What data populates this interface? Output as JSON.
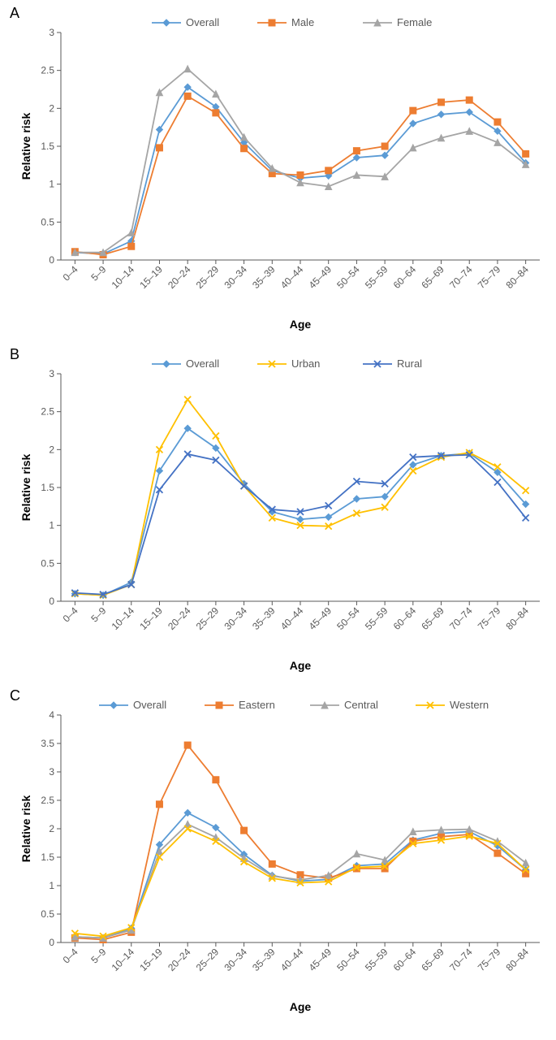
{
  "categories": [
    "0–4",
    "5–9",
    "10–14",
    "15–19",
    "20–24",
    "25–29",
    "30–34",
    "35–39",
    "40–44",
    "45–49",
    "50–54",
    "55–59",
    "60–64",
    "65–69",
    "70–74",
    "75–79",
    "80–84"
  ],
  "xlabel": "Age",
  "ylabel": "Relative risk",
  "xlabel_fontsize": 14,
  "ylabel_fontsize": 14,
  "tick_fontsize": 12,
  "legend_fontsize": 13,
  "background_color": "#ffffff",
  "axis_color": "#595959",
  "tick_color": "#595959",
  "panels": [
    {
      "label": "A",
      "ylim": [
        0,
        3
      ],
      "ytick_step": 0.5,
      "series": [
        {
          "name": "Overall",
          "color": "#5b9bd5",
          "marker": "diamond",
          "values": [
            0.1,
            0.08,
            0.25,
            1.72,
            2.28,
            2.02,
            1.55,
            1.18,
            1.08,
            1.11,
            1.35,
            1.38,
            1.8,
            1.92,
            1.95,
            1.7,
            1.28
          ]
        },
        {
          "name": "Male",
          "color": "#ed7d31",
          "marker": "square",
          "values": [
            0.11,
            0.07,
            0.18,
            1.48,
            2.16,
            1.94,
            1.47,
            1.14,
            1.12,
            1.18,
            1.44,
            1.5,
            1.97,
            2.08,
            2.11,
            1.82,
            1.4
          ]
        },
        {
          "name": "Female",
          "color": "#a5a5a5",
          "marker": "triangle",
          "values": [
            0.1,
            0.1,
            0.36,
            2.21,
            2.52,
            2.19,
            1.62,
            1.21,
            1.02,
            0.97,
            1.12,
            1.1,
            1.48,
            1.61,
            1.7,
            1.55,
            1.26
          ]
        }
      ]
    },
    {
      "label": "B",
      "ylim": [
        0,
        3
      ],
      "ytick_step": 0.5,
      "series": [
        {
          "name": "Overall",
          "color": "#5b9bd5",
          "marker": "diamond",
          "values": [
            0.1,
            0.08,
            0.25,
            1.72,
            2.28,
            2.02,
            1.55,
            1.18,
            1.08,
            1.11,
            1.35,
            1.38,
            1.8,
            1.92,
            1.95,
            1.7,
            1.28
          ]
        },
        {
          "name": "Urban",
          "color": "#ffc000",
          "marker": "x",
          "values": [
            0.1,
            0.08,
            0.22,
            2.0,
            2.66,
            2.18,
            1.52,
            1.1,
            1.0,
            0.99,
            1.16,
            1.24,
            1.72,
            1.9,
            1.96,
            1.77,
            1.46
          ]
        },
        {
          "name": "Rural",
          "color": "#4472c4",
          "marker": "x",
          "values": [
            0.11,
            0.09,
            0.22,
            1.47,
            1.94,
            1.86,
            1.52,
            1.21,
            1.18,
            1.26,
            1.58,
            1.55,
            1.9,
            1.92,
            1.93,
            1.57,
            1.1
          ]
        }
      ]
    },
    {
      "label": "C",
      "ylim": [
        0,
        4
      ],
      "ytick_step": 0.5,
      "series": [
        {
          "name": "Overall",
          "color": "#5b9bd5",
          "marker": "diamond",
          "values": [
            0.1,
            0.08,
            0.25,
            1.72,
            2.28,
            2.02,
            1.55,
            1.18,
            1.08,
            1.11,
            1.35,
            1.38,
            1.8,
            1.92,
            1.95,
            1.7,
            1.28
          ]
        },
        {
          "name": "Eastern",
          "color": "#ed7d31",
          "marker": "square",
          "values": [
            0.08,
            0.05,
            0.18,
            2.43,
            3.47,
            2.86,
            1.97,
            1.38,
            1.19,
            1.13,
            1.3,
            1.3,
            1.78,
            1.86,
            1.9,
            1.57,
            1.21
          ]
        },
        {
          "name": "Central",
          "color": "#a5a5a5",
          "marker": "triangle",
          "values": [
            0.1,
            0.08,
            0.22,
            1.6,
            2.08,
            1.85,
            1.48,
            1.17,
            1.1,
            1.18,
            1.56,
            1.45,
            1.95,
            1.98,
            1.99,
            1.78,
            1.4
          ]
        },
        {
          "name": "Western",
          "color": "#ffc000",
          "marker": "x",
          "values": [
            0.16,
            0.11,
            0.26,
            1.5,
            2.0,
            1.78,
            1.42,
            1.13,
            1.05,
            1.07,
            1.32,
            1.34,
            1.74,
            1.8,
            1.87,
            1.74,
            1.28
          ]
        }
      ]
    }
  ]
}
